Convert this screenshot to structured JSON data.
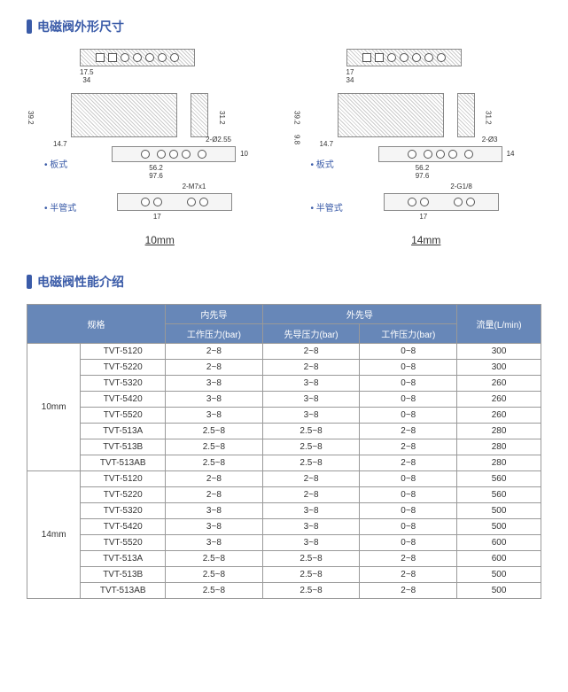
{
  "sections": {
    "dim_title": "电磁阀外形尺寸",
    "perf_title": "电磁阀性能介绍"
  },
  "labels": {
    "plate": "• 板式",
    "pipe": "• 半管式"
  },
  "diagrams": {
    "left": {
      "size": "10mm",
      "top_dim1": "17.5",
      "top_dim2": "34",
      "side_h1": "39.2",
      "side_h2": "31.2",
      "side_w": "14.7",
      "plate_annot": "2-Ø2.55",
      "plate_h": "10",
      "plate_w1": "56.2",
      "plate_w2": "97.6",
      "pipe_annot": "2-M7x1",
      "pipe_dim": "17"
    },
    "right": {
      "size": "14mm",
      "top_dim1": "17",
      "top_dim2": "34",
      "side_h1": "39.2",
      "side_h2": "31.2",
      "side_w": "14.7",
      "side_h3": "9.8",
      "plate_annot": "2-Ø3",
      "plate_h": "14",
      "plate_w1": "56.2",
      "plate_w2": "97.6",
      "pipe_annot": "2-G1/8",
      "pipe_dim": "17"
    }
  },
  "table": {
    "headers": {
      "spec": "规格",
      "internal": "内先导",
      "external": "外先导",
      "work_p": "工作压力(bar)",
      "pilot_p": "先导压力(bar)",
      "flow": "流量(L/min)"
    },
    "groups": [
      {
        "size": "10mm",
        "rows": [
          {
            "model": "TVT-5120",
            "int": "2~8",
            "ext_p": "2~8",
            "ext_w": "0~8",
            "flow": "300"
          },
          {
            "model": "TVT-5220",
            "int": "2~8",
            "ext_p": "2~8",
            "ext_w": "0~8",
            "flow": "300"
          },
          {
            "model": "TVT-5320",
            "int": "3~8",
            "ext_p": "3~8",
            "ext_w": "0~8",
            "flow": "260"
          },
          {
            "model": "TVT-5420",
            "int": "3~8",
            "ext_p": "3~8",
            "ext_w": "0~8",
            "flow": "260"
          },
          {
            "model": "TVT-5520",
            "int": "3~8",
            "ext_p": "3~8",
            "ext_w": "0~8",
            "flow": "260"
          },
          {
            "model": "TVT-513A",
            "int": "2.5~8",
            "ext_p": "2.5~8",
            "ext_w": "2~8",
            "flow": "280"
          },
          {
            "model": "TVT-513B",
            "int": "2.5~8",
            "ext_p": "2.5~8",
            "ext_w": "2~8",
            "flow": "280"
          },
          {
            "model": "TVT-513AB",
            "int": "2.5~8",
            "ext_p": "2.5~8",
            "ext_w": "2~8",
            "flow": "280"
          }
        ]
      },
      {
        "size": "14mm",
        "rows": [
          {
            "model": "TVT-5120",
            "int": "2~8",
            "ext_p": "2~8",
            "ext_w": "0~8",
            "flow": "560"
          },
          {
            "model": "TVT-5220",
            "int": "2~8",
            "ext_p": "2~8",
            "ext_w": "0~8",
            "flow": "560"
          },
          {
            "model": "TVT-5320",
            "int": "3~8",
            "ext_p": "3~8",
            "ext_w": "0~8",
            "flow": "500"
          },
          {
            "model": "TVT-5420",
            "int": "3~8",
            "ext_p": "3~8",
            "ext_w": "0~8",
            "flow": "500"
          },
          {
            "model": "TVT-5520",
            "int": "3~8",
            "ext_p": "3~8",
            "ext_w": "0~8",
            "flow": "600"
          },
          {
            "model": "TVT-513A",
            "int": "2.5~8",
            "ext_p": "2.5~8",
            "ext_w": "2~8",
            "flow": "600"
          },
          {
            "model": "TVT-513B",
            "int": "2.5~8",
            "ext_p": "2.5~8",
            "ext_w": "2~8",
            "flow": "500"
          },
          {
            "model": "TVT-513AB",
            "int": "2.5~8",
            "ext_p": "2.5~8",
            "ext_w": "2~8",
            "flow": "500"
          }
        ]
      }
    ]
  }
}
